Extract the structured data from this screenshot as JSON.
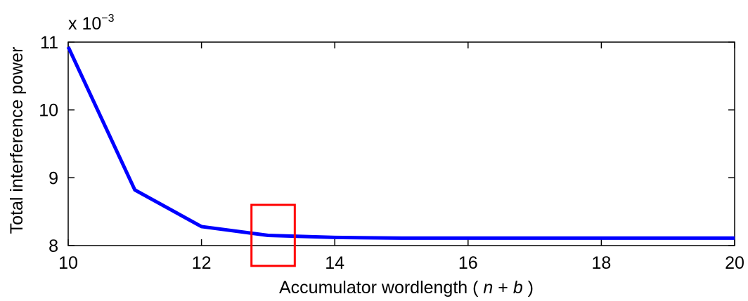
{
  "chart_data": {
    "type": "line",
    "title": "",
    "xlabel_main": "Accumulator wordlength ( ",
    "xlabel_n": "n",
    "xlabel_plus": " + ",
    "xlabel_b": "b",
    "xlabel_close": " )",
    "ylabel": "Total interference power",
    "y_exponent_prefix": "x 10",
    "y_exponent_power": "−3",
    "xlim": [
      10,
      20
    ],
    "ylim": [
      8,
      11
    ],
    "grid": false,
    "x_ticks": [
      10,
      12,
      14,
      16,
      18,
      20
    ],
    "y_ticks": [
      8,
      9,
      10,
      11
    ],
    "series": [
      {
        "color": "#0000ff",
        "x": [
          10,
          11,
          12,
          13,
          14,
          15,
          16,
          17,
          18,
          19,
          20
        ],
        "y": [
          10.93,
          8.82,
          8.28,
          8.15,
          8.12,
          8.11,
          8.11,
          8.11,
          8.11,
          8.11,
          8.11
        ]
      }
    ],
    "annotations": [
      {
        "type": "rectangle",
        "color": "#ff0000",
        "x_range": [
          12.75,
          13.4
        ],
        "y_range": [
          7.7,
          8.6
        ]
      }
    ]
  }
}
